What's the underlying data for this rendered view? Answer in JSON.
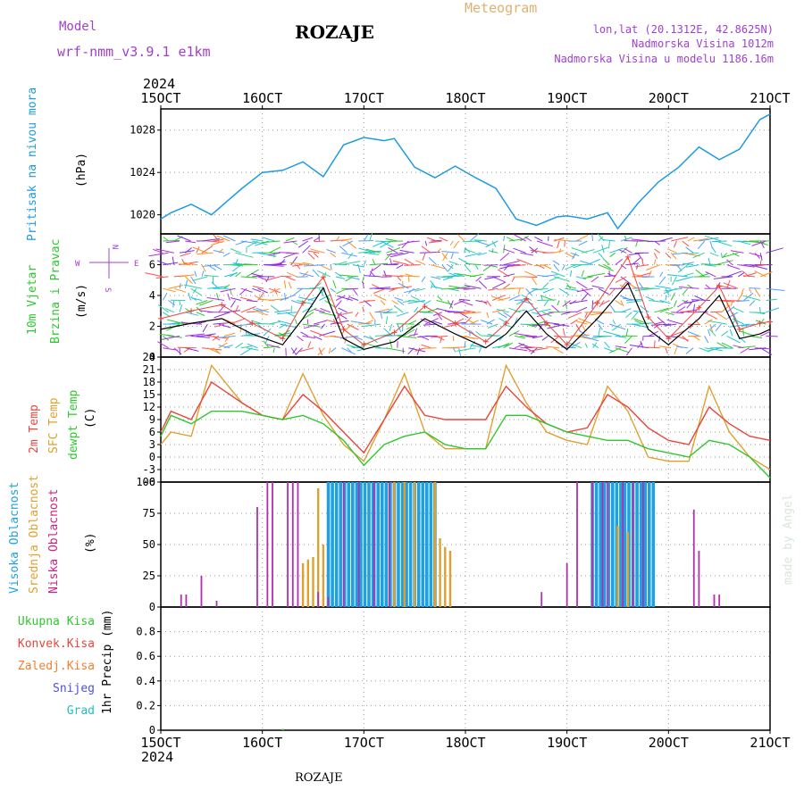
{
  "header": {
    "model_label": "Model",
    "model_name": "wrf-nmm_v3.9.1  e1km",
    "station": "ROZAJE",
    "meteogram_label": "Meteogram",
    "coords": "lon,lat (20.1312E, 42.8625N)",
    "elevation": "Nadmorska Visina 1012m",
    "model_elevation": "Nadmorska Visina u modelu 1186.16m",
    "year_top": "2024",
    "year_bottom": "2024",
    "footer_station": "ROZAJE",
    "credit": "made by Angel"
  },
  "x_ticks": [
    "15OCT",
    "16OCT",
    "17OCT",
    "18OCT",
    "19OCT",
    "20OCT",
    "21OCT"
  ],
  "panel_labels": {
    "pressure": [
      "Pritisak na nivou mora"
    ],
    "pressure_unit": "(hPa)",
    "wind": [
      "10m Vjetar",
      "Brzina i Pravac"
    ],
    "wind_unit": "(m/s)",
    "wind_compass": {
      "n": "N",
      "s": "S",
      "e": "E",
      "w": "W"
    },
    "temp": [
      "2m Temp",
      "SFC Temp",
      "dewpt Temp"
    ],
    "temp_unit": "(C)",
    "cloud": [
      "Visoka Oblacnost",
      "Srednja Oblacnost",
      "Niska Oblacnost"
    ],
    "cloud_unit": "(%)",
    "precip": [
      "Ukupna Kisa",
      "Konvek.Kisa",
      "Zaledj.Kisa",
      "Snijeg",
      "Grad"
    ],
    "precip_unit": "1hr Precip (mm)"
  },
  "colors": {
    "pressure": "#1e9be0",
    "temp2m": "#e8453c",
    "sfc": "#e0a030",
    "dew": "#2ec82e",
    "cloud_high": "#1fa0e0",
    "cloud_mid": "#e0a030",
    "cloud_low": "#b030b0",
    "ukupna": "#2ec82e",
    "konvek": "#e8453c",
    "zaledj": "#f08030",
    "snijeg": "#5050e0",
    "grad": "#20c0c0",
    "purple_text": "#a040d0",
    "gold_text": "#e0b070",
    "wind_speed_black": "#000000",
    "wind_max_red": "#e8453c"
  },
  "chart_data": [
    {
      "type": "line",
      "ylabel": "(hPa)",
      "ylim": [
        1018.2,
        1030
      ],
      "yticks": [
        1020,
        1024,
        1028
      ],
      "grid": true,
      "series": [
        {
          "name": "Pritisak na nivou mora",
          "x": [
            15.0,
            15.1,
            15.3,
            15.5,
            15.8,
            16.0,
            16.2,
            16.4,
            16.6,
            16.8,
            17.0,
            17.2,
            17.3,
            17.5,
            17.7,
            17.9,
            18.1,
            18.3,
            18.5,
            18.7,
            18.9,
            19.0,
            19.2,
            19.4,
            19.5,
            19.7,
            19.9,
            20.1,
            20.3,
            20.5,
            20.7,
            20.9,
            21.0
          ],
          "y": [
            1019.6,
            1020.2,
            1021.0,
            1020.0,
            1022.5,
            1024.0,
            1024.2,
            1025.0,
            1023.6,
            1026.6,
            1027.3,
            1027.0,
            1027.2,
            1024.5,
            1023.5,
            1024.6,
            1023.5,
            1022.5,
            1019.6,
            1019.0,
            1019.8,
            1019.9,
            1019.6,
            1020.2,
            1018.7,
            1021.1,
            1023.1,
            1024.5,
            1026.4,
            1025.2,
            1026.2,
            1029.0,
            1029.5
          ]
        }
      ]
    },
    {
      "type": "line",
      "ylabel": "(m/s)",
      "ylim": [
        0,
        8
      ],
      "yticks": [
        0,
        2,
        4,
        6
      ],
      "grid": true,
      "series": [
        {
          "name": "speed",
          "x": [
            15.0,
            15.3,
            15.6,
            15.9,
            16.2,
            16.4,
            16.6,
            16.8,
            17.0,
            17.3,
            17.6,
            17.9,
            18.2,
            18.4,
            18.6,
            18.8,
            19.0,
            19.3,
            19.6,
            19.8,
            20.0,
            20.3,
            20.5,
            20.7,
            20.9,
            21.0
          ],
          "y": [
            1.8,
            2.2,
            2.5,
            1.5,
            0.8,
            2.5,
            4.5,
            1.2,
            0.5,
            1.0,
            2.5,
            1.5,
            0.6,
            1.5,
            3.0,
            1.5,
            0.5,
            2.5,
            4.8,
            1.8,
            0.8,
            2.5,
            4.0,
            1.2,
            1.5,
            1.8
          ]
        },
        {
          "name": "max",
          "x": [
            15.0,
            15.3,
            15.6,
            15.9,
            16.2,
            16.4,
            16.6,
            16.8,
            17.0,
            17.3,
            17.6,
            17.9,
            18.2,
            18.4,
            18.6,
            18.8,
            19.0,
            19.3,
            19.6,
            19.8,
            20.0,
            20.3,
            20.5,
            20.7,
            20.9,
            21.0
          ],
          "y": [
            2.5,
            3.0,
            3.4,
            2.2,
            1.2,
            3.5,
            5.2,
            1.8,
            0.8,
            1.6,
            3.3,
            2.2,
            1.0,
            2.2,
            3.8,
            2.2,
            0.8,
            3.5,
            6.5,
            2.6,
            1.2,
            3.2,
            4.6,
            1.8,
            2.2,
            2.3
          ]
        }
      ]
    },
    {
      "type": "line",
      "ylabel": "(C)",
      "ylim": [
        -6,
        24
      ],
      "yticks": [
        -6,
        -3,
        0,
        3,
        6,
        9,
        12,
        15,
        18,
        21,
        24
      ],
      "grid": true,
      "series": [
        {
          "name": "2m Temp",
          "x": [
            15.0,
            15.1,
            15.3,
            15.5,
            15.8,
            16.0,
            16.2,
            16.4,
            16.6,
            16.8,
            17.0,
            17.2,
            17.4,
            17.6,
            17.8,
            18.0,
            18.2,
            18.4,
            18.6,
            18.8,
            19.0,
            19.2,
            19.4,
            19.6,
            19.8,
            20.0,
            20.2,
            20.4,
            20.6,
            20.8,
            21.0
          ],
          "y": [
            6,
            11,
            9,
            18,
            13,
            10,
            9,
            15,
            11,
            6,
            1,
            9,
            17,
            10,
            9,
            9,
            9,
            17,
            12,
            8,
            6,
            7,
            15,
            12,
            7,
            4,
            3,
            12,
            8,
            5,
            4
          ]
        },
        {
          "name": "SFC Temp",
          "x": [
            15.0,
            15.1,
            15.3,
            15.5,
            15.8,
            16.0,
            16.2,
            16.4,
            16.6,
            16.8,
            17.0,
            17.2,
            17.4,
            17.6,
            17.8,
            18.0,
            18.2,
            18.4,
            18.6,
            18.8,
            19.0,
            19.2,
            19.4,
            19.6,
            19.8,
            20.0,
            20.2,
            20.4,
            20.6,
            20.8,
            21.0
          ],
          "y": [
            3,
            6,
            5,
            22,
            13,
            10,
            9,
            20,
            10,
            3,
            -1,
            9,
            20,
            6,
            2,
            2,
            2,
            22,
            13,
            6,
            4,
            3,
            17,
            11,
            0,
            -1,
            -1,
            17,
            6,
            0,
            -3
          ]
        },
        {
          "name": "dewpt Temp",
          "x": [
            15.0,
            15.1,
            15.3,
            15.5,
            15.8,
            16.0,
            16.2,
            16.4,
            16.6,
            16.8,
            17.0,
            17.2,
            17.4,
            17.6,
            17.8,
            18.0,
            18.2,
            18.4,
            18.6,
            18.8,
            19.0,
            19.2,
            19.4,
            19.6,
            19.8,
            20.0,
            20.2,
            20.4,
            20.6,
            20.8,
            21.0
          ],
          "y": [
            5,
            10,
            8,
            11,
            11,
            10,
            9,
            10,
            8,
            4,
            -2,
            3,
            5,
            6,
            3,
            2,
            2,
            10,
            10,
            8,
            6,
            5,
            4,
            4,
            2,
            1,
            0,
            4,
            3,
            0,
            -5
          ]
        }
      ]
    },
    {
      "type": "bar",
      "ylabel": "(%)",
      "ylim": [
        0,
        100
      ],
      "yticks": [
        0,
        25,
        50,
        75,
        100
      ],
      "grid": true,
      "series": [
        {
          "name": "Visoka Oblacnost",
          "ranges": [
            [
              16.65,
              17.1,
              100
            ],
            [
              17.1,
              17.7,
              100
            ],
            [
              19.25,
              19.85,
              100
            ]
          ]
        },
        {
          "name": "Srednja Oblacnost",
          "bars": [
            [
              16.4,
              35
            ],
            [
              16.45,
              38
            ],
            [
              16.5,
              40
            ],
            [
              16.55,
              95
            ],
            [
              16.6,
              50
            ],
            [
              17.3,
              100
            ],
            [
              17.4,
              100
            ],
            [
              17.5,
              100
            ],
            [
              17.7,
              100
            ],
            [
              17.75,
              55
            ],
            [
              17.8,
              48
            ],
            [
              17.85,
              45
            ],
            [
              19.5,
              65
            ],
            [
              19.6,
              60
            ]
          ]
        },
        {
          "name": "Niska Oblacnost",
          "bars": [
            [
              15.2,
              10
            ],
            [
              15.25,
              10
            ],
            [
              15.4,
              25
            ],
            [
              15.55,
              5
            ],
            [
              15.95,
              80
            ],
            [
              16.05,
              100
            ],
            [
              16.1,
              100
            ],
            [
              16.25,
              100
            ],
            [
              16.3,
              100
            ],
            [
              16.35,
              100
            ],
            [
              16.55,
              12
            ],
            [
              16.65,
              8
            ],
            [
              16.8,
              100
            ],
            [
              16.95,
              100
            ],
            [
              17.1,
              100
            ],
            [
              17.25,
              100
            ],
            [
              18.75,
              12
            ],
            [
              19.0,
              35
            ],
            [
              19.1,
              100
            ],
            [
              19.25,
              100
            ],
            [
              19.35,
              100
            ],
            [
              19.4,
              100
            ],
            [
              19.55,
              100
            ],
            [
              19.65,
              100
            ],
            [
              19.75,
              100
            ],
            [
              20.25,
              78
            ],
            [
              20.3,
              45
            ],
            [
              20.45,
              10
            ],
            [
              20.5,
              10
            ]
          ]
        }
      ]
    },
    {
      "type": "bar",
      "ylabel": "1hr Precip (mm)",
      "ylim": [
        0,
        1
      ],
      "yticks": [
        0,
        0.2,
        0.4,
        0.6,
        0.8
      ],
      "grid": true,
      "series": [
        {
          "name": "Ukupna Kisa",
          "bars": [
            [
              16.2,
              0.01
            ]
          ]
        }
      ]
    }
  ]
}
